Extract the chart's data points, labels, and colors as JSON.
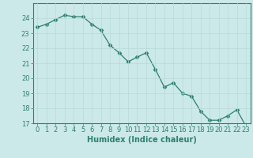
{
  "x": [
    0,
    1,
    2,
    3,
    4,
    5,
    6,
    7,
    8,
    9,
    10,
    11,
    12,
    13,
    14,
    15,
    16,
    17,
    18,
    19,
    20,
    21,
    22,
    23
  ],
  "y": [
    23.4,
    23.6,
    23.9,
    24.2,
    24.1,
    24.1,
    23.6,
    23.2,
    22.2,
    21.7,
    21.1,
    21.4,
    21.7,
    20.6,
    19.4,
    19.7,
    19.0,
    18.8,
    17.8,
    17.2,
    17.2,
    17.5,
    17.9,
    16.8
  ],
  "line_color": "#2e7f6e",
  "marker": "D",
  "marker_size": 2.5,
  "bg_color": "#cce9e9",
  "grid_color": "#b8d8d8",
  "xlabel": "Humidex (Indice chaleur)",
  "ylim": [
    17,
    25
  ],
  "xlim": [
    -0.5,
    23.5
  ],
  "yticks": [
    17,
    18,
    19,
    20,
    21,
    22,
    23,
    24
  ],
  "xticks": [
    0,
    1,
    2,
    3,
    4,
    5,
    6,
    7,
    8,
    9,
    10,
    11,
    12,
    13,
    14,
    15,
    16,
    17,
    18,
    19,
    20,
    21,
    22,
    23
  ],
  "tick_color": "#2e7f6e",
  "label_fontsize": 7,
  "tick_fontsize": 6
}
